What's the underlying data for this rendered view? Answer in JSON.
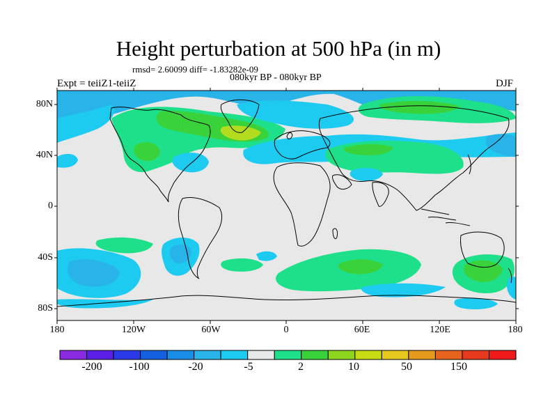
{
  "title": "Height perturbation at 500 hPa (in m)",
  "stats": "rmsd= 2.60099 diff= -1.83282e-09",
  "period": "080kyr BP - 080kyr BP",
  "experiment": "Expt = teiiZ1-teiiZ",
  "season": "DJF",
  "lat_ticks": [
    "80N",
    "40N",
    "0",
    "40S",
    "80S"
  ],
  "lon_ticks": [
    "180",
    "120W",
    "60W",
    "0",
    "60E",
    "120E",
    "180"
  ],
  "colorbar_labels": [
    "-200",
    "-100",
    "-20",
    "-5",
    "2",
    "10",
    "50",
    "150"
  ],
  "colorbar_colors": [
    "#8a2be2",
    "#5a1ee6",
    "#2a3ae8",
    "#1560e0",
    "#1a8ee6",
    "#28b4e8",
    "#1ecbf0",
    "#e8e8e8",
    "#1fe08a",
    "#3ad23a",
    "#8ed61e",
    "#c8dc14",
    "#e6c81e",
    "#e69a1e",
    "#e6641e",
    "#e63a1e",
    "#ee1a1a"
  ],
  "colors": {
    "neutral": "#e8e8e8",
    "light_blue": "#1ecbf0",
    "blue": "#28b4e8",
    "dark_blue": "#1a8ee6",
    "green": "#1fe08a",
    "mid_green": "#3ad23a",
    "yellow_green": "#b4dc1e"
  }
}
